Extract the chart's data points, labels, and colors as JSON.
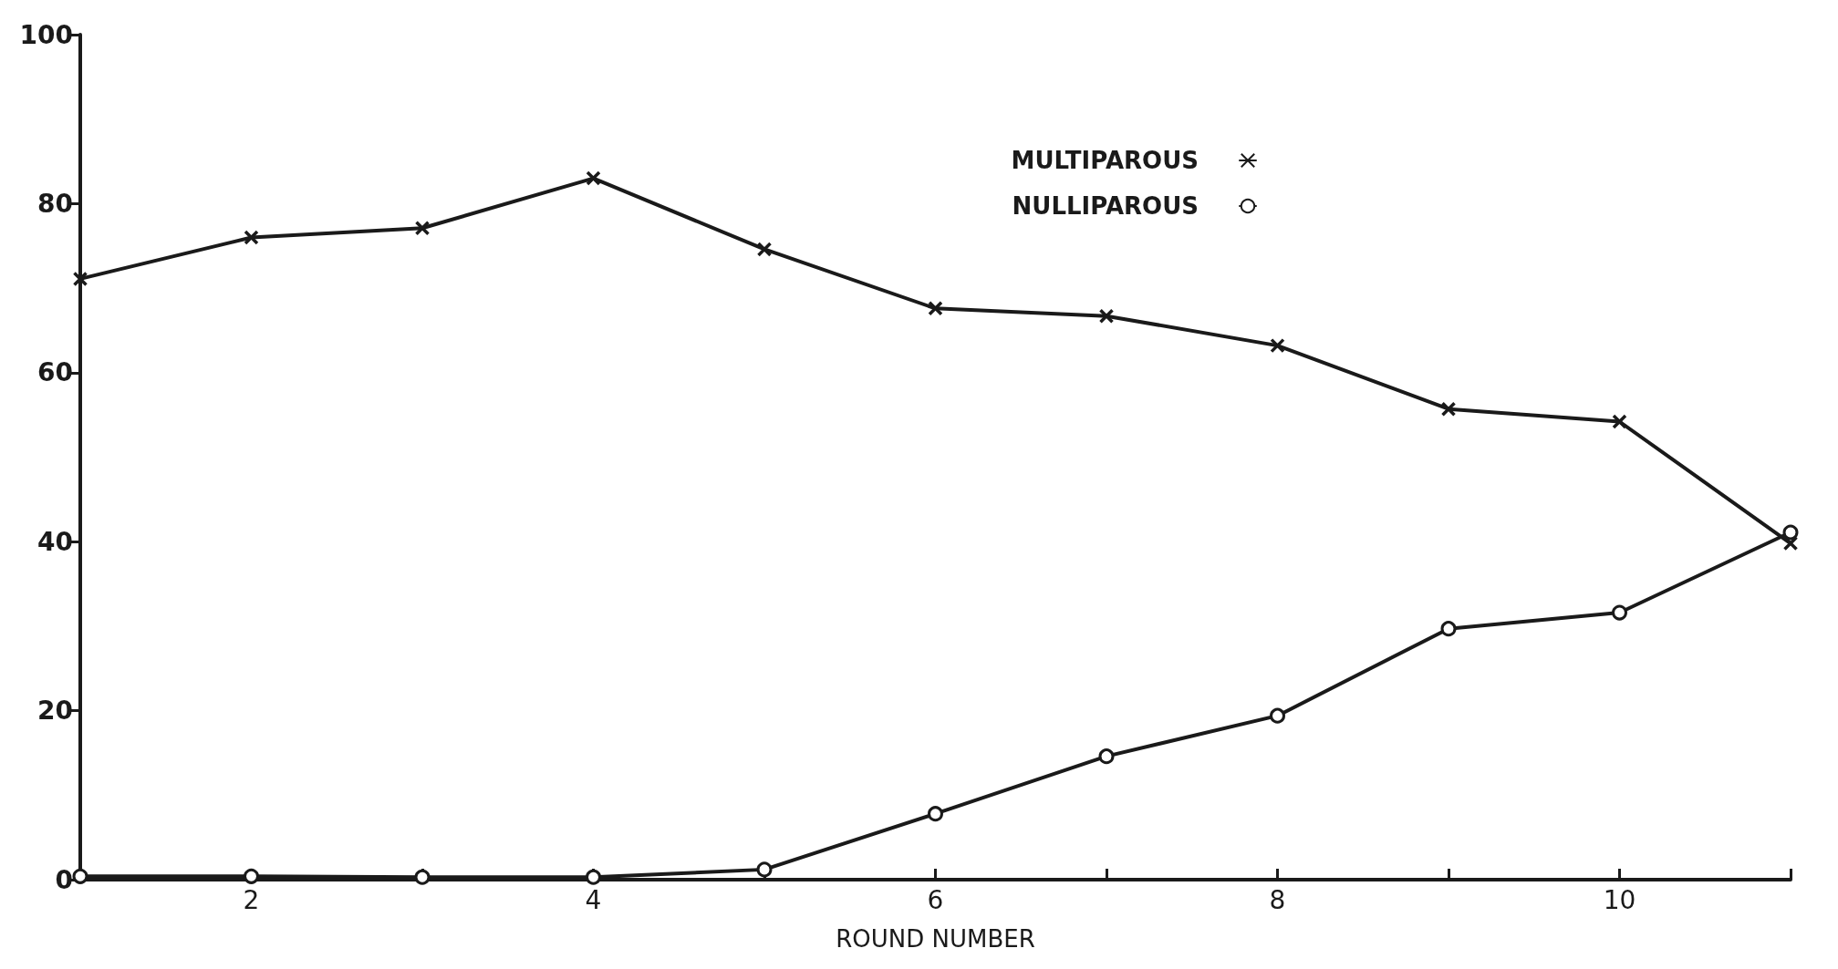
{
  "chart_data": {
    "type": "line",
    "xlabel": "ROUND NUMBER",
    "x": [
      1,
      2,
      3,
      4,
      5,
      6,
      7,
      8,
      9,
      10,
      11
    ],
    "series": [
      {
        "name": "MULTIPAROUS",
        "color": "#1a1a1a",
        "marker": "cross",
        "values": [
          71.1,
          76,
          77.1,
          83,
          74.6,
          67.6,
          66.7,
          63.2,
          55.7,
          54.2,
          39.8
        ]
      },
      {
        "name": "NULLIPAROUS",
        "color": "#1a1a1a",
        "marker": "circle",
        "values": [
          0.4,
          0.4,
          0.3,
          0.3,
          1.2,
          7.8,
          14.6,
          19.4,
          29.7,
          31.6,
          41.1
        ]
      }
    ],
    "xlim": [
      1,
      11
    ],
    "xticks": [
      {
        "value": 1,
        "label": null
      },
      2,
      {
        "value": 3,
        "label": null
      },
      4,
      {
        "value": 5,
        "label": null
      },
      6,
      {
        "value": 7,
        "label": null
      },
      8,
      {
        "value": 9,
        "label": null
      },
      10,
      {
        "value": 11,
        "label": null
      }
    ],
    "ylim": [
      0,
      100
    ],
    "yticks": [
      0,
      20,
      40,
      60,
      80,
      100
    ],
    "grid": false,
    "legend": "top right",
    "line_style": "solid"
  }
}
